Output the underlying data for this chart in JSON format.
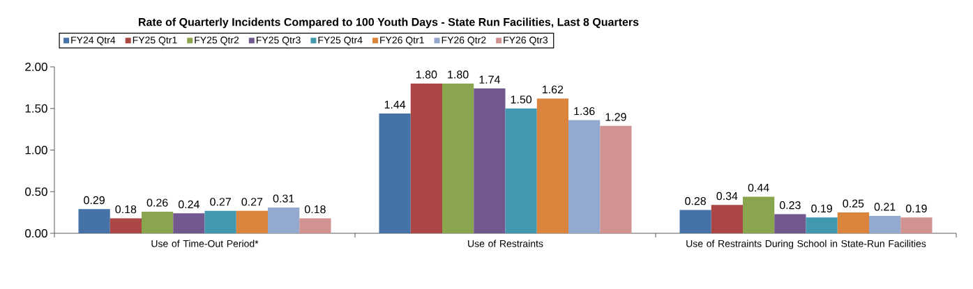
{
  "chart_data": {
    "type": "bar",
    "title": "Rate of Quarterly Incidents Compared to 100 Youth Days - State Run Facilities, Last 8 Quarters",
    "categories": [
      "Use of Time-Out Period*",
      "Use of Restraints",
      "Use of Restraints During School in State-Run Facilities"
    ],
    "series": [
      {
        "name": "FY24 Qtr4",
        "color": "#4572a7",
        "values": [
          0.29,
          1.44,
          0.28
        ],
        "value_labels": [
          "0.29",
          "1.44",
          "0.28"
        ]
      },
      {
        "name": "FY25 Qtr1",
        "color": "#aa4643",
        "values": [
          0.18,
          1.8,
          0.34
        ],
        "value_labels": [
          "0.18",
          "1.80",
          "0.34"
        ]
      },
      {
        "name": "FY25 Qtr2",
        "color": "#89a54e",
        "values": [
          0.26,
          1.8,
          0.44
        ],
        "value_labels": [
          "0.26",
          "1.80",
          "0.44"
        ]
      },
      {
        "name": "FY25 Qtr3",
        "color": "#71588f",
        "values": [
          0.24,
          1.74,
          0.23
        ],
        "value_labels": [
          "0.24",
          "1.74",
          "0.23"
        ]
      },
      {
        "name": "FY25 Qtr4",
        "color": "#4198af",
        "values": [
          0.27,
          1.5,
          0.19
        ],
        "value_labels": [
          "0.27",
          "1.50",
          "0.19"
        ]
      },
      {
        "name": "FY26 Qtr1",
        "color": "#db843d",
        "values": [
          0.27,
          1.62,
          0.25
        ],
        "value_labels": [
          "0.27",
          "1.62",
          "0.25"
        ]
      },
      {
        "name": "FY26 Qtr2",
        "color": "#93a9cf",
        "values": [
          0.31,
          1.36,
          0.21
        ],
        "value_labels": [
          "0.31",
          "1.36",
          "0.21"
        ]
      },
      {
        "name": "FY26 Qtr3",
        "color": "#d19392",
        "values": [
          0.18,
          1.29,
          0.19
        ],
        "value_labels": [
          "0.18",
          "1.29",
          "0.19"
        ]
      }
    ],
    "ylim": [
      0,
      2
    ],
    "yticks": [
      {
        "value": 0,
        "label": "0.00"
      },
      {
        "value": 0.5,
        "label": "0.50"
      },
      {
        "value": 1,
        "label": "1.00"
      },
      {
        "value": 1.5,
        "label": "1.50"
      },
      {
        "value": 2,
        "label": "2.00"
      }
    ],
    "legend": "top left",
    "grid": false
  }
}
